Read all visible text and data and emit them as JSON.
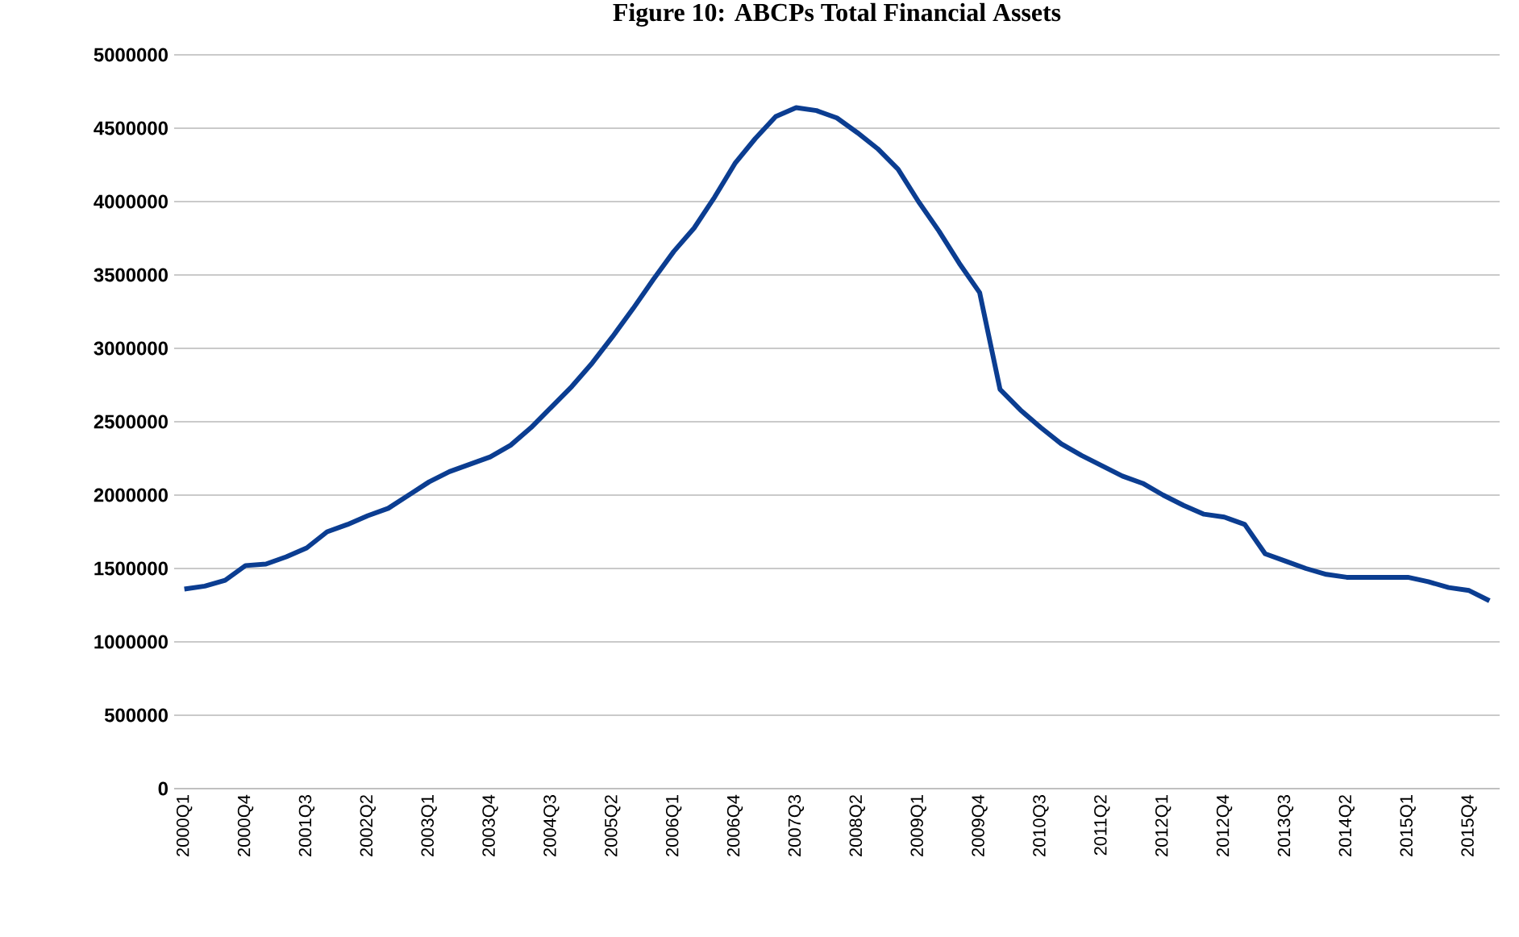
{
  "chart_data": {
    "type": "line",
    "title": "Figure 10: ABCPs Total Financial Assets",
    "categories": [
      "2000Q1",
      null,
      null,
      "2000Q4",
      null,
      null,
      "2001Q3",
      null,
      null,
      "2002Q2",
      null,
      null,
      "2003Q1",
      null,
      null,
      "2003Q4",
      null,
      null,
      "2004Q3",
      null,
      null,
      "2005Q2",
      null,
      null,
      "2006Q1",
      null,
      null,
      "2006Q4",
      null,
      null,
      "2007Q3",
      null,
      null,
      "2008Q2",
      null,
      null,
      "2009Q1",
      null,
      null,
      "2009Q4",
      null,
      null,
      "2010Q3",
      null,
      null,
      "2011Q2",
      null,
      null,
      "2012Q1",
      null,
      null,
      "2012Q4",
      null,
      null,
      "2013Q3",
      null,
      null,
      "2014Q2",
      null,
      null,
      "2015Q1",
      null,
      null,
      "2015Q4",
      null
    ],
    "series": [
      {
        "color": "#0b3d91",
        "values": [
          1360000,
          1380000,
          1420000,
          1520000,
          1530000,
          1580000,
          1640000,
          1750000,
          1800000,
          1860000,
          1910000,
          2000000,
          2090000,
          2160000,
          2210000,
          2260000,
          2340000,
          2460000,
          2600000,
          2740000,
          2900000,
          3080000,
          3270000,
          3470000,
          3660000,
          3820000,
          4030000,
          4260000,
          4430000,
          4580000,
          4640000,
          4620000,
          4570000,
          4470000,
          4360000,
          4220000,
          4000000,
          3800000,
          3580000,
          3380000,
          2720000,
          2580000,
          2460000,
          2350000,
          2270000,
          2200000,
          2130000,
          2080000,
          2000000,
          1930000,
          1870000,
          1850000,
          1800000,
          1600000,
          1550000,
          1500000,
          1460000,
          1440000,
          1440000,
          1440000,
          1440000,
          1410000,
          1370000,
          1350000,
          1280000
        ]
      }
    ],
    "ylim": [
      0,
      5000000
    ],
    "yticks": [
      0,
      500000,
      1000000,
      1500000,
      2000000,
      2500000,
      3000000,
      3500000,
      4000000,
      4500000,
      5000000
    ],
    "grid": "y",
    "marker": "none",
    "line_style": "solid"
  }
}
